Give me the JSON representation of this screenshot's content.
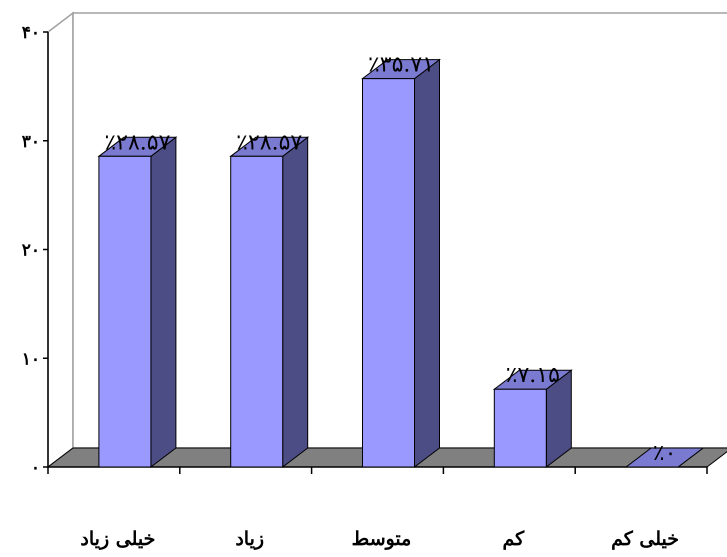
{
  "chart_data": {
    "type": "bar",
    "style": "3d-column",
    "categories": [
      "خیلی زیاد",
      "زیاد",
      "متوسط",
      "کم",
      "خیلی کم"
    ],
    "values": [
      28.57,
      28.57,
      35.71,
      7.15,
      0
    ],
    "data_labels": [
      "٪۲۸.۵۷",
      "٪۲۸.۵۷",
      "٪۳۵.۷۱",
      "٪۷.۱۵",
      "٪۰"
    ],
    "y_ticks": [
      0,
      10,
      20,
      30,
      40
    ],
    "y_tick_labels": [
      "۰",
      "۱۰",
      "۲۰",
      "۳۰",
      "۴۰"
    ],
    "ylim": [
      0,
      40
    ],
    "grid": false,
    "legend": "none",
    "colors": {
      "bar_front": "#9999ff",
      "bar_side": "#4d4d86",
      "bar_top": "#7a7ad1",
      "floor": "#808080",
      "wall": "#ffffff",
      "wall_border": "#a0a0a0",
      "axis": "#000000"
    }
  }
}
